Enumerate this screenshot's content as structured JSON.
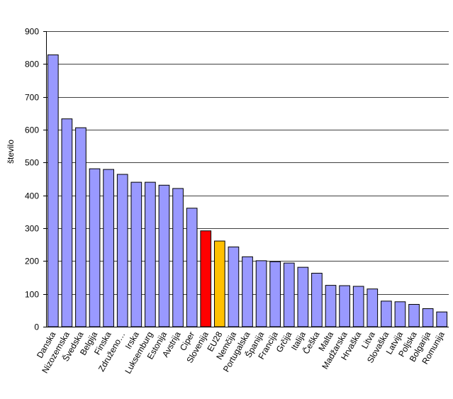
{
  "chart_data": {
    "type": "bar",
    "title": "",
    "xlabel": "",
    "ylabel": "število",
    "ylim": [
      0,
      900
    ],
    "yticks": [
      0,
      100,
      200,
      300,
      400,
      500,
      600,
      700,
      800,
      900
    ],
    "grid": true,
    "legend": "none",
    "categories": [
      "Danska",
      "Nizozemska",
      "Švedska",
      "Belgija",
      "Finska",
      "Združeno…",
      "Irska",
      "Luksemburg",
      "Estonija",
      "Avstrija",
      "Ciper",
      "Slovenija",
      "EU28",
      "Nemčija",
      "Portugalska",
      "Španija",
      "Francija",
      "Grčija",
      "Italija",
      "Češka",
      "Malta",
      "Madžarska",
      "Hrvaška",
      "Litva",
      "Slovaška",
      "Latvija",
      "Poljska",
      "Bolgarija",
      "Romunija"
    ],
    "values": [
      828,
      633,
      606,
      481,
      479,
      464,
      440,
      440,
      431,
      421,
      361,
      292,
      261,
      243,
      213,
      201,
      198,
      194,
      181,
      163,
      126,
      125,
      123,
      115,
      78,
      76,
      68,
      55,
      45
    ],
    "colors": {
      "default": "#9999ff",
      "Slovenija": "#ff0000",
      "EU28": "#ffc000"
    },
    "bar_stroke": "#000000",
    "grid_color": "#000000"
  }
}
